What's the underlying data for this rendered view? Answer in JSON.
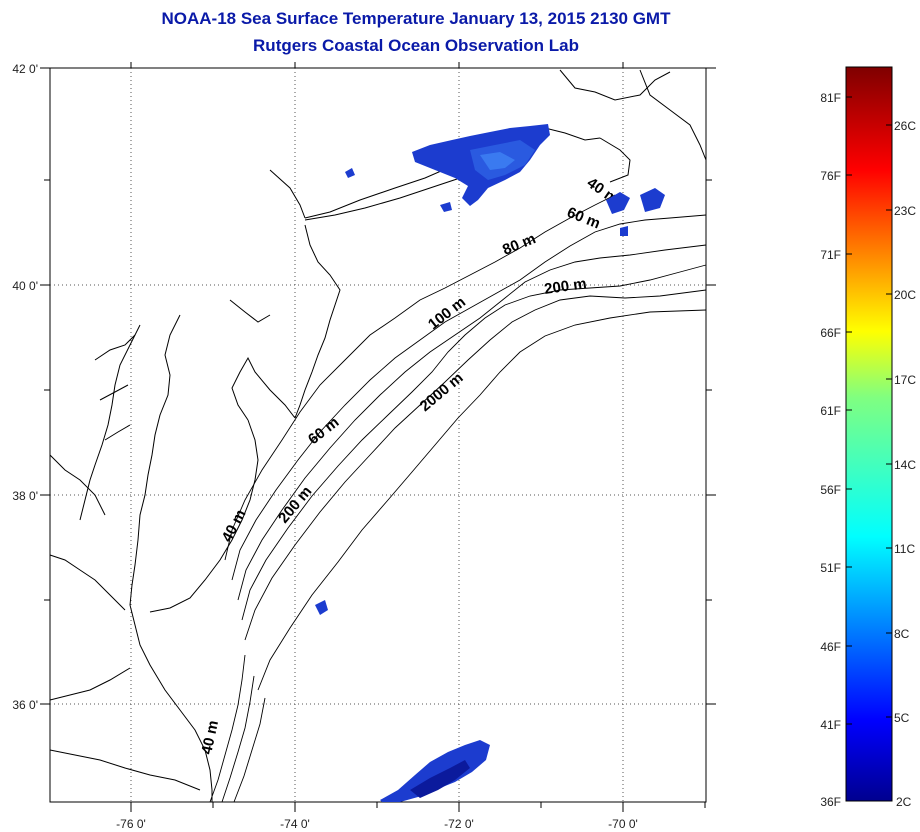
{
  "title": {
    "line1": "NOAA-18 Sea Surface Temperature January 13, 2015 2130 GMT",
    "line2": "Rutgers Coastal Ocean Observation Lab"
  },
  "axes": {
    "lat_labels": [
      "42 0'",
      "40 0'",
      "38 0'",
      "36 0'"
    ],
    "lon_labels": [
      "-76 0'",
      "-74 0'",
      "-72 0'",
      "-70 0'"
    ]
  },
  "contours": {
    "labels": [
      "40 m",
      "60 m",
      "80 m",
      "200 m",
      "100 m",
      "2000 m",
      "60 m",
      "40 m",
      "200 m",
      "40 m"
    ]
  },
  "colorbar": {
    "fahrenheit": [
      "81F",
      "76F",
      "71F",
      "66F",
      "61F",
      "56F",
      "51F",
      "46F",
      "41F",
      "36F"
    ],
    "celsius": [
      "26C",
      "23C",
      "20C",
      "17C",
      "14C",
      "11C",
      "8C",
      "5C",
      "2C"
    ]
  },
  "colors": {
    "title": "#0a1aa8",
    "sst_blue": "#1c3ccf",
    "sst_dark": "#0b1a9c"
  }
}
